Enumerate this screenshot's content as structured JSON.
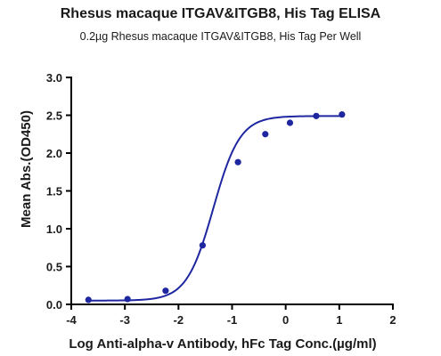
{
  "chart_data": {
    "type": "scatter",
    "title": "Rhesus macaque ITGAV&ITGB8, His Tag ELISA",
    "subtitle": "0.2µg Rhesus macaque ITGAV&ITGB8,  His Tag Per Well",
    "xlabel": "Log Anti-alpha-v Antibody, hFc Tag Conc.(µg/ml)",
    "ylabel": "Mean Abs.(OD450)",
    "xlim": [
      -4,
      2
    ],
    "ylim": [
      0.0,
      3.0
    ],
    "x_ticks": [
      -4,
      -3,
      -2,
      -1,
      0,
      1,
      2
    ],
    "x_tick_labels": [
      "-4",
      "-3",
      "-2",
      "-1",
      "0",
      "1",
      "2"
    ],
    "y_ticks": [
      0.0,
      0.5,
      1.0,
      1.5,
      2.0,
      2.5,
      3.0
    ],
    "y_tick_labels": [
      "0.0",
      "0.5",
      "1.0",
      "1.5",
      "2.0",
      "2.5",
      "3.0"
    ],
    "grid": false,
    "series": [
      {
        "color": "#1f27a0",
        "x": [
          -3.68,
          -2.95,
          -2.24,
          -1.55,
          -0.89,
          -0.38,
          0.08,
          0.57,
          1.05
        ],
        "y": [
          0.06,
          0.07,
          0.18,
          0.78,
          1.88,
          2.25,
          2.4,
          2.49,
          2.51
        ],
        "fit": "4PL sigmoid",
        "fit_params": {
          "bottom": 0.05,
          "top": 2.49,
          "log_ec50": -1.35,
          "hill": 1.75
        }
      }
    ]
  }
}
